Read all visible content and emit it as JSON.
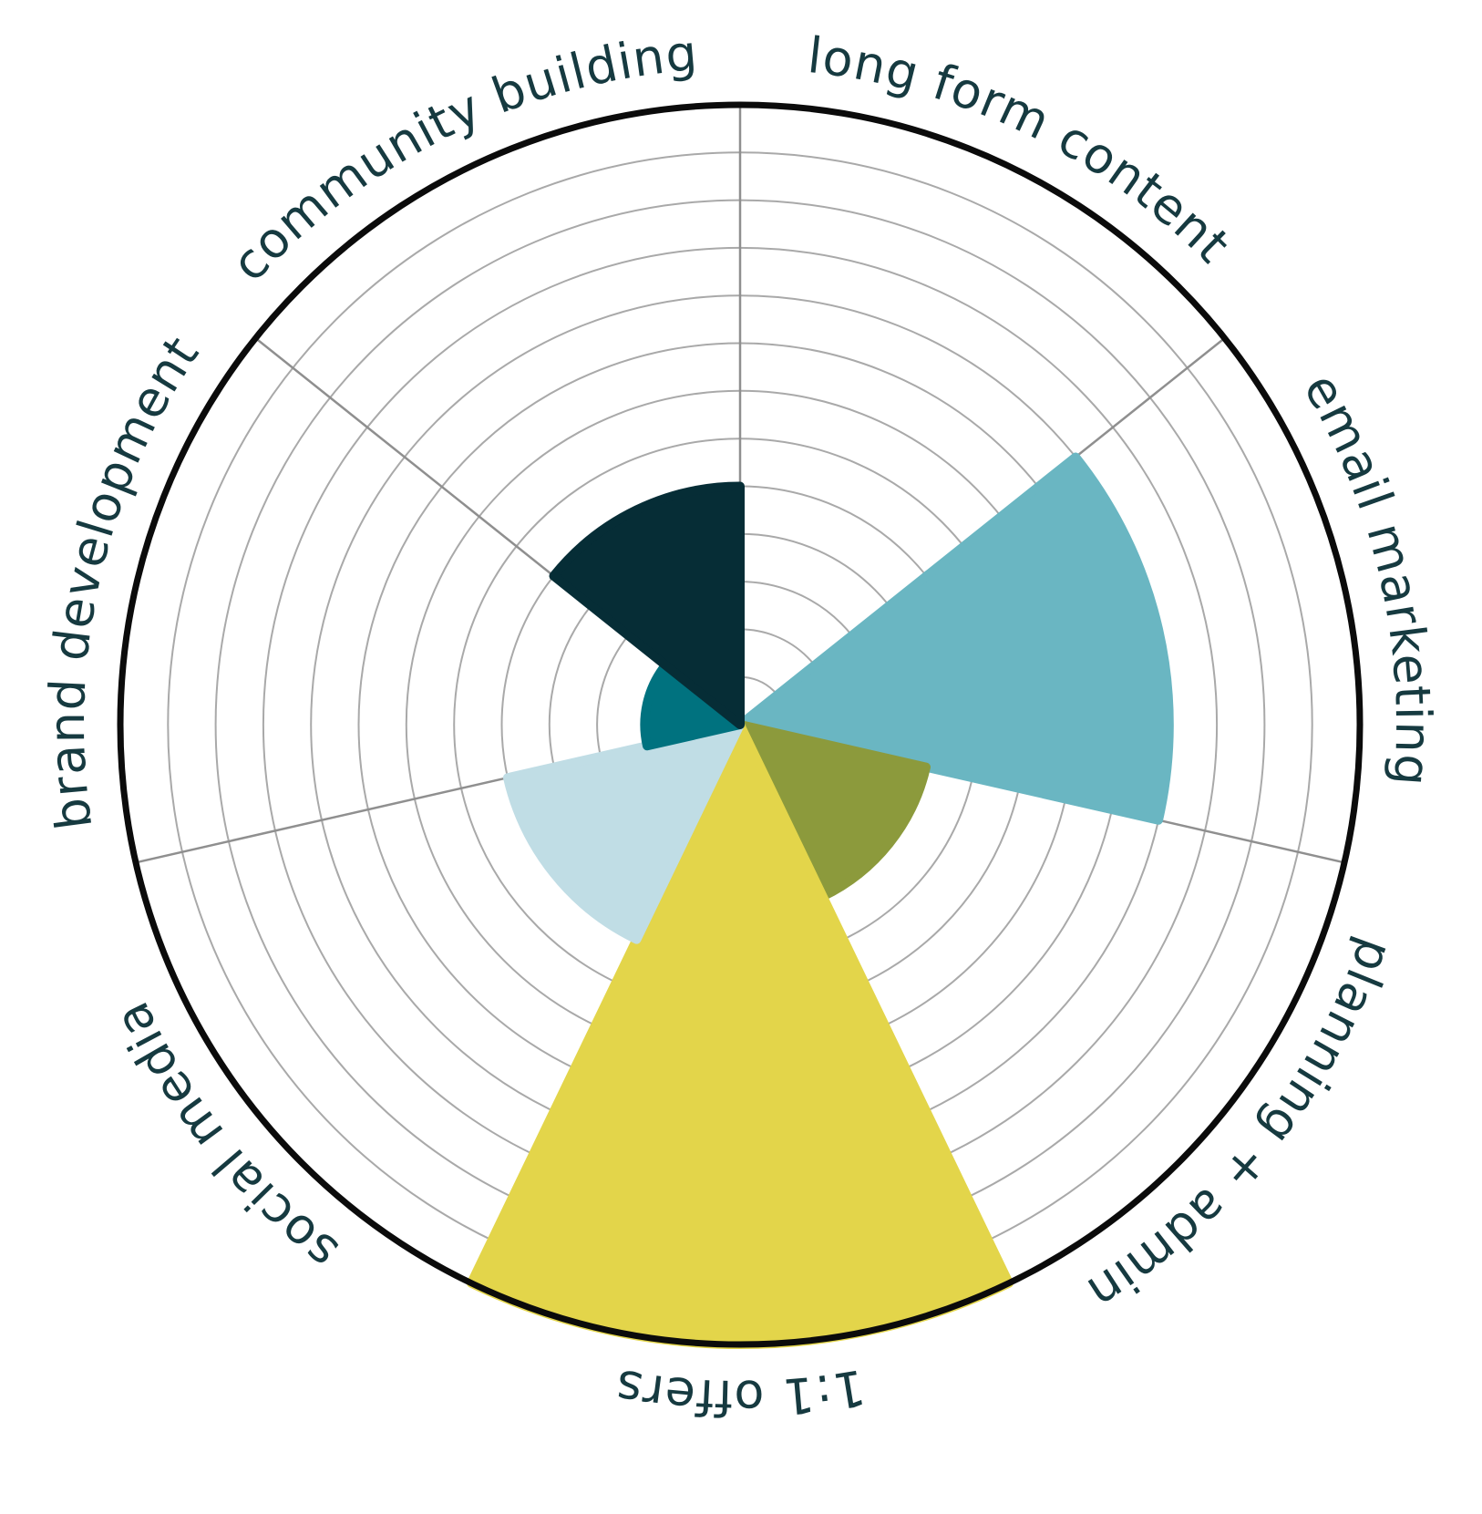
{
  "chart_data": {
    "type": "polar-area",
    "scale_max": 13,
    "rings": 13,
    "grid": true,
    "categories": [
      "long form content",
      "email marketing",
      "planning + admin",
      "1:1 offers",
      "social media",
      "brand development",
      "community building"
    ],
    "values": [
      0,
      9,
      4,
      13,
      5,
      2,
      5
    ],
    "colors": [
      "#ffffff",
      "#6ab6c2",
      "#8c9a3c",
      "#e3d54a",
      "#c0dde5",
      "#00727f",
      "#062d36"
    ]
  }
}
